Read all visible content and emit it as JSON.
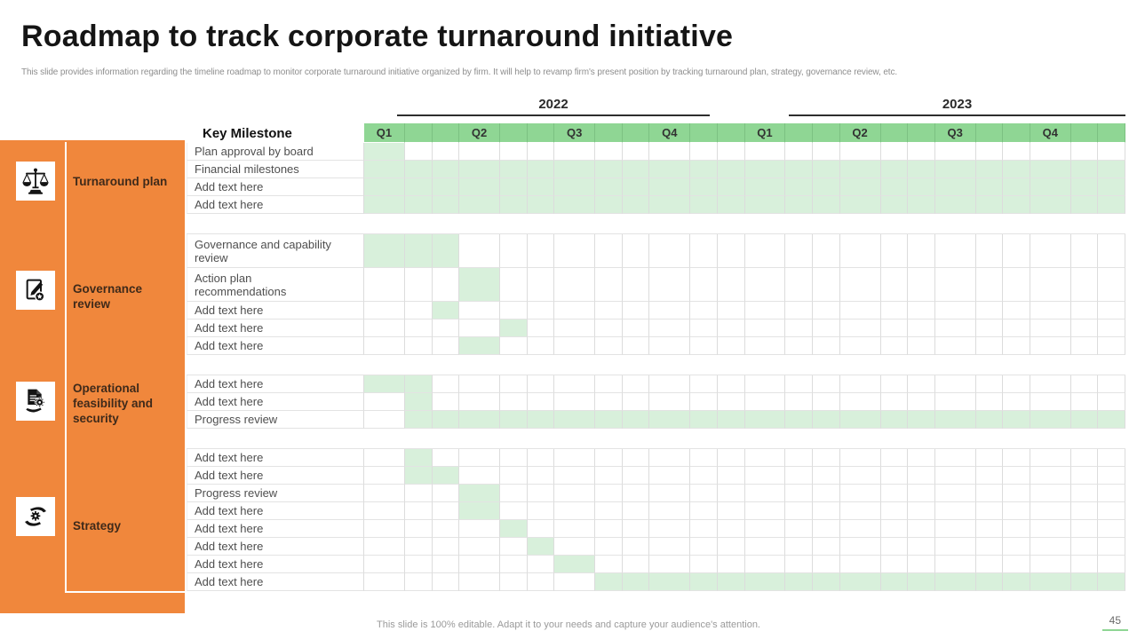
{
  "slide": {
    "title": "Roadmap to track corporate turnaround initiative",
    "subtitle": "This slide provides information regarding the timeline roadmap to monitor corporate turnaround initiative organized by firm. It will help to revamp firm's present position by tracking turnaround plan, strategy, governance review, etc.",
    "footer": "This slide is 100% editable. Adapt it to your needs and capture your audience's attention.",
    "page_number": "45"
  },
  "colors": {
    "sidebar_orange": "#F0873C",
    "quarter_header_green": "#8FD694",
    "gantt_fill_green": "#D8F0DB",
    "grid_line": "#DCDCDC",
    "sidebar_text": "#3F2A1A",
    "milestone_text": "#4f4f4f"
  },
  "timeline": {
    "key_milestone_label": "Key Milestone",
    "columns_per_quarter": 3,
    "years": [
      {
        "label": "2022",
        "quarters": [
          "Q1",
          "Q2",
          "Q3",
          "Q4"
        ]
      },
      {
        "label": "2023",
        "quarters": [
          "Q1",
          "Q2",
          "Q3",
          "Q4"
        ]
      }
    ]
  },
  "sections": [
    {
      "label": "Turnaround plan",
      "icon": "scales-icon",
      "rows": [
        {
          "label": "Plan approval by board",
          "start": 1,
          "end": 1
        },
        {
          "label": "Financial milestones",
          "start": 1,
          "end": 24
        },
        {
          "label": "Add text here",
          "start": 1,
          "end": 24
        },
        {
          "label": "Add text here",
          "start": 1,
          "end": 24
        }
      ]
    },
    {
      "label": "Governance review",
      "icon": "document-edit-icon",
      "rows": [
        {
          "label": "Governance and capability review",
          "start": 1,
          "end": 3,
          "tall": true
        },
        {
          "label": "Action plan recommendations",
          "start": 4,
          "end": 4,
          "tall": true
        },
        {
          "label": "Add text here",
          "start": 3,
          "end": 3
        },
        {
          "label": "Add text here",
          "start": 5,
          "end": 5
        },
        {
          "label": "Add text here",
          "start": 4,
          "end": 4
        }
      ]
    },
    {
      "label": "Operational feasibility and security",
      "icon": "document-gear-hand-icon",
      "rows": [
        {
          "label": "Add text here",
          "start": 1,
          "end": 2
        },
        {
          "label": "Add text here",
          "start": 2,
          "end": 2
        },
        {
          "label": "Progress review",
          "start": 2,
          "end": 24
        }
      ]
    },
    {
      "label": "Strategy",
      "icon": "hands-gear-icon",
      "rows": [
        {
          "label": "Add text here",
          "start": 2,
          "end": 2
        },
        {
          "label": "Add text here",
          "start": 2,
          "end": 3
        },
        {
          "label": "Progress review",
          "start": 4,
          "end": 4
        },
        {
          "label": "Add text here",
          "start": 4,
          "end": 4
        },
        {
          "label": "Add text here",
          "start": 5,
          "end": 5
        },
        {
          "label": "Add text here",
          "start": 6,
          "end": 6
        },
        {
          "label": "Add text here",
          "start": 7,
          "end": 7
        },
        {
          "label": "Add text here",
          "start": 8,
          "end": 24
        }
      ]
    }
  ]
}
